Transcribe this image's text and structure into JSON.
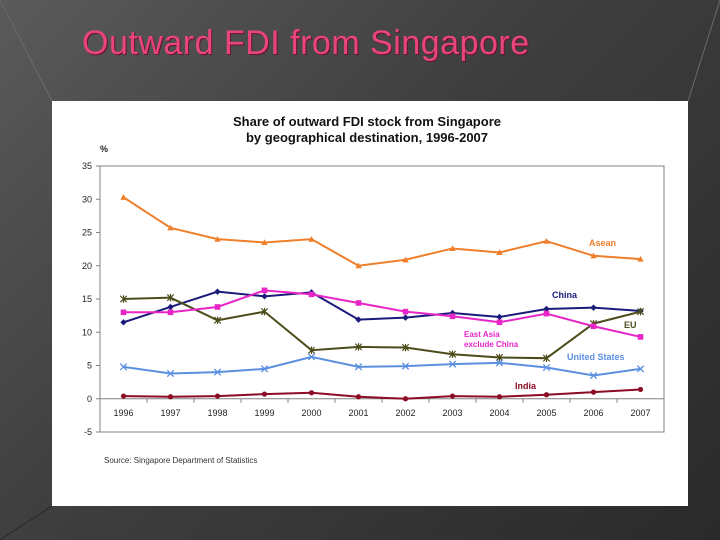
{
  "slide": {
    "title": "Outward FDI from Singapore"
  },
  "chart_data": {
    "type": "line",
    "title_line1": "Share of outward FDI stock from Singapore",
    "title_line2": "by geographical destination, 1996-2007",
    "ylabel": "%",
    "source": "Source: Singapore Department of Statistics",
    "ylim": [
      -5,
      35
    ],
    "yticks": [
      -5,
      0,
      5,
      10,
      15,
      20,
      25,
      30,
      35
    ],
    "categories": [
      "1996",
      "1997",
      "1998",
      "1999",
      "2000",
      "2001",
      "2002",
      "2003",
      "2004",
      "2005",
      "2006",
      "2007"
    ],
    "series": [
      {
        "name": "Asean",
        "label": "Asean",
        "color": "#f07f2c",
        "marker": "triangle",
        "values": [
          30.3,
          25.7,
          24.0,
          23.5,
          24.0,
          20.0,
          20.9,
          22.6,
          22.0,
          23.7,
          21.5,
          21.0
        ]
      },
      {
        "name": "China",
        "label": "China",
        "color": "#1a1a7a",
        "marker": "diamond",
        "values": [
          11.5,
          13.8,
          16.1,
          15.4,
          16.0,
          11.9,
          12.2,
          12.9,
          12.3,
          13.5,
          13.7,
          13.2
        ]
      },
      {
        "name": "EU",
        "label": "EU",
        "color": "#4d4d1c",
        "marker": "star",
        "values": [
          15.0,
          15.2,
          11.8,
          13.1,
          7.3,
          7.8,
          7.7,
          6.7,
          6.2,
          6.1,
          11.3,
          13.1
        ]
      },
      {
        "name": "East Asia exclude China",
        "label_line1": "East Asia",
        "label_line2": "exclude China",
        "color": "#e826c8",
        "marker": "square",
        "values": [
          13.0,
          13.0,
          13.8,
          16.3,
          15.7,
          14.4,
          13.1,
          12.4,
          11.5,
          12.8,
          10.9,
          9.3
        ]
      },
      {
        "name": "United States",
        "label": "United States",
        "color": "#5b8fe0",
        "marker": "x",
        "values": [
          4.8,
          3.8,
          4.0,
          4.5,
          6.3,
          4.8,
          4.9,
          5.2,
          5.4,
          4.7,
          3.5,
          4.5
        ]
      },
      {
        "name": "India",
        "label": "India",
        "color": "#8b0c24",
        "marker": "circle",
        "values": [
          0.4,
          0.3,
          0.4,
          0.7,
          0.9,
          0.3,
          0.0,
          0.4,
          0.3,
          0.6,
          1.0,
          1.4
        ]
      }
    ]
  }
}
